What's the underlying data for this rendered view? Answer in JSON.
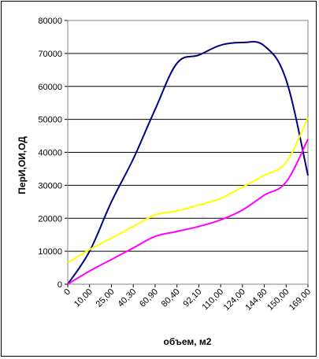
{
  "chart_data": {
    "type": "line",
    "title": "",
    "xlabel": "объем, м2",
    "ylabel": "ПерИ,ОИ,ОД",
    "categories": [
      "0",
      "10,00",
      "25,00",
      "40,30",
      "60,90",
      "80,40",
      "92,10",
      "110,00",
      "124,00",
      "144,80",
      "150,00",
      "169,00"
    ],
    "ylim": [
      0,
      80000
    ],
    "yticks": [
      "0",
      "10000",
      "20000",
      "30000",
      "40000",
      "50000",
      "60000",
      "70000",
      "80000"
    ],
    "grid": true,
    "legend": "none",
    "series": [
      {
        "color": "#000080",
        "values": [
          0,
          10000,
          25000,
          38000,
          53000,
          67000,
          69500,
          72500,
          73300,
          72300,
          62000,
          33000
        ]
      },
      {
        "color": "#FFFF00",
        "values": [
          6500,
          10500,
          14000,
          17500,
          21000,
          22200,
          24000,
          26000,
          29500,
          33000,
          37000,
          50500
        ]
      },
      {
        "color": "#FF00FF",
        "values": [
          0,
          4000,
          7500,
          11000,
          14500,
          16000,
          17500,
          19500,
          22500,
          27000,
          31000,
          44000
        ]
      }
    ]
  }
}
